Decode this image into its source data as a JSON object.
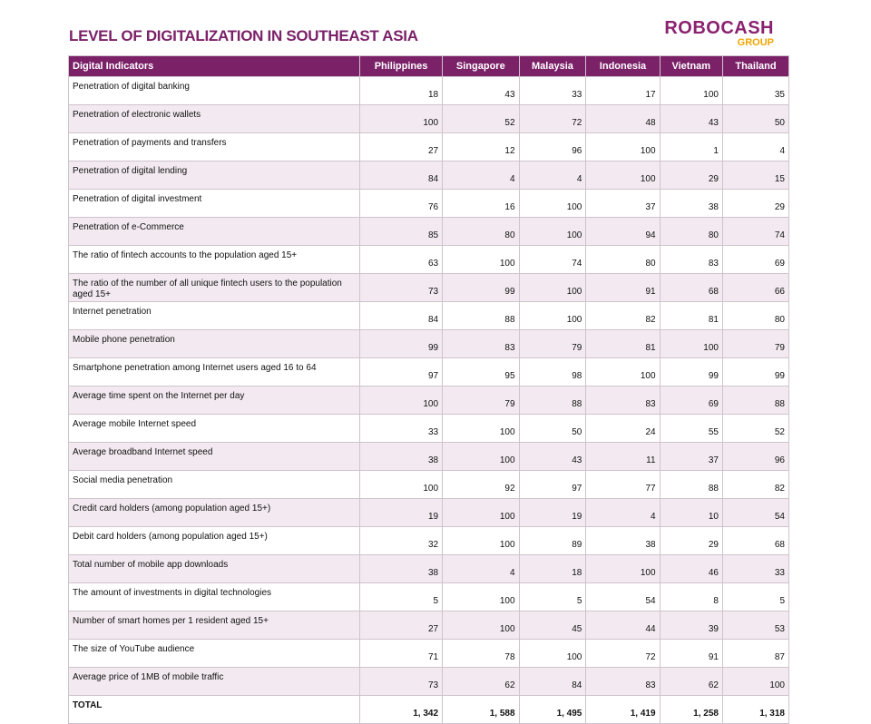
{
  "header": {
    "title": "LEVEL OF DIGITALIZATION IN SOUTHEAST ASIA",
    "logo": "ROBOCASH",
    "logo_sub": "GROUP"
  },
  "table": {
    "columns": [
      "Digital Indicators",
      "Philippines",
      "Singapore",
      "Malaysia",
      "Indonesia",
      "Vietnam",
      "Thailand"
    ],
    "rows": [
      {
        "label": "Penetration of digital banking",
        "values": [
          18,
          43,
          33,
          17,
          100,
          35
        ]
      },
      {
        "label": "Penetration of electronic wallets",
        "values": [
          100,
          52,
          72,
          48,
          43,
          50
        ]
      },
      {
        "label": "Penetration of payments and transfers",
        "values": [
          27,
          12,
          96,
          100,
          1,
          4
        ]
      },
      {
        "label": "Penetration of digital lending",
        "values": [
          84,
          4,
          4,
          100,
          29,
          15
        ]
      },
      {
        "label": "Penetration of digital investment",
        "values": [
          76,
          16,
          100,
          37,
          38,
          29
        ]
      },
      {
        "label": "Penetration of e-Commerce",
        "values": [
          85,
          80,
          100,
          94,
          80,
          74
        ]
      },
      {
        "label": "The ratio of fintech accounts to the population aged 15+",
        "values": [
          63,
          100,
          74,
          80,
          83,
          69
        ]
      },
      {
        "label": "The ratio of the number of all unique fintech users to the population aged 15+",
        "values": [
          73,
          99,
          100,
          91,
          68,
          66
        ]
      },
      {
        "label": "Internet penetration",
        "values": [
          84,
          88,
          100,
          82,
          81,
          80
        ]
      },
      {
        "label": "Mobile phone penetration",
        "values": [
          99,
          83,
          79,
          81,
          100,
          79
        ]
      },
      {
        "label": "Smartphone penetration among Internet users aged 16 to 64",
        "values": [
          97,
          95,
          98,
          100,
          99,
          99
        ]
      },
      {
        "label": "Average time spent on the Internet per day",
        "values": [
          100,
          79,
          88,
          83,
          69,
          88
        ]
      },
      {
        "label": "Average mobile Internet speed",
        "values": [
          33,
          100,
          50,
          24,
          55,
          52
        ]
      },
      {
        "label": "Average broadband Internet speed",
        "values": [
          38,
          100,
          43,
          11,
          37,
          96
        ]
      },
      {
        "label": "Social media penetration",
        "values": [
          100,
          92,
          97,
          77,
          88,
          82
        ]
      },
      {
        "label": "Credit card holders (among population aged 15+)",
        "values": [
          19,
          100,
          19,
          4,
          10,
          54
        ]
      },
      {
        "label": "Debit card holders (among population aged 15+)",
        "values": [
          32,
          100,
          89,
          38,
          29,
          68
        ]
      },
      {
        "label": "Total number of mobile app downloads",
        "values": [
          38,
          4,
          18,
          100,
          46,
          33
        ]
      },
      {
        "label": "The amount of investments in digital technologies",
        "values": [
          5,
          100,
          5,
          54,
          8,
          5
        ]
      },
      {
        "label": "Number of smart homes per 1 resident aged 15+",
        "values": [
          27,
          100,
          45,
          44,
          39,
          53
        ]
      },
      {
        "label": "The size of YouTube audience",
        "values": [
          71,
          78,
          100,
          72,
          91,
          87
        ]
      },
      {
        "label": "Average price of 1MB of mobile traffic",
        "values": [
          73,
          62,
          84,
          83,
          62,
          100
        ]
      }
    ],
    "total": {
      "label": "TOTAL",
      "values": [
        "1, 342",
        "1, 588",
        "1, 495",
        "1, 419",
        "1, 258",
        "1, 318"
      ]
    }
  }
}
